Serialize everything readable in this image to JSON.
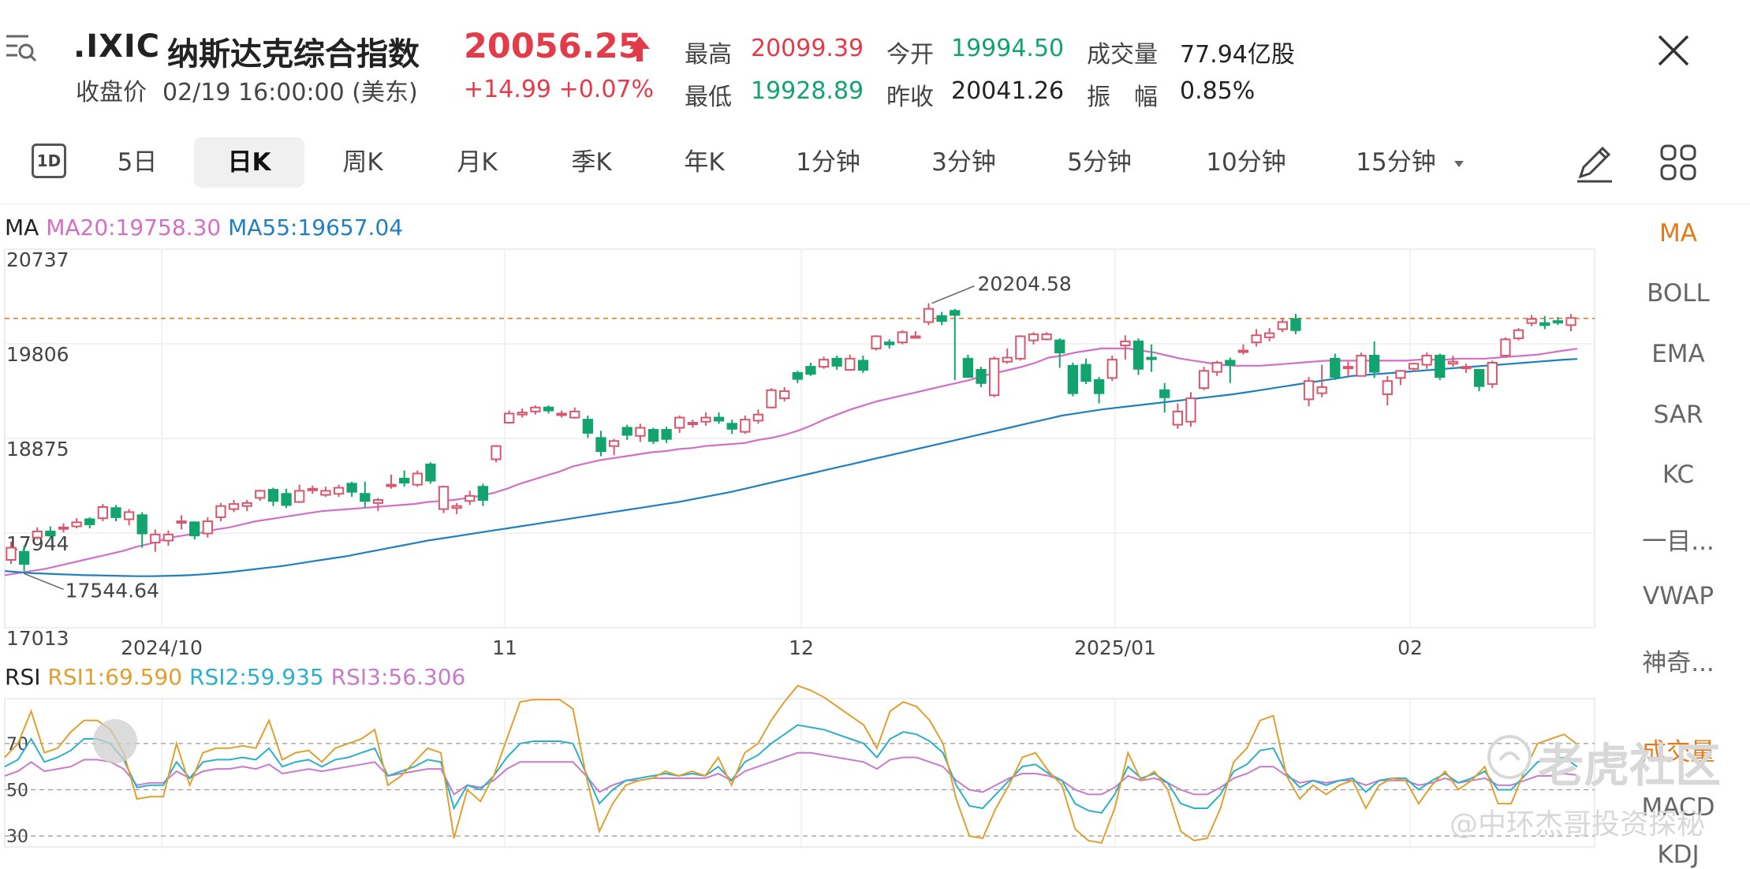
{
  "header": {
    "symbol": ".IXIC",
    "name": "纳斯达克综合指数",
    "price": "20056.25",
    "close_label": "收盘价",
    "close_time": "02/19 16:00:00 (美东)",
    "change": "+14.99  +0.07%",
    "stats": [
      {
        "label": "最高",
        "value": "20099.39",
        "color": "red"
      },
      {
        "label": "今开",
        "value": "19994.50",
        "color": "green"
      },
      {
        "label": "成交量",
        "value": "77.94亿股",
        "color": "dark"
      },
      {
        "label": "最低",
        "value": "19928.89",
        "color": "green"
      },
      {
        "label": "昨收",
        "value": "20041.26",
        "color": "dark"
      },
      {
        "label": "振　幅",
        "value": "0.85%",
        "color": "dark"
      }
    ]
  },
  "tabs": {
    "items": [
      "5日",
      "日K",
      "周K",
      "月K",
      "季K",
      "年K",
      "1分钟",
      "3分钟",
      "5分钟",
      "10分钟",
      "15分钟"
    ],
    "icon_1d": "1D",
    "active": "日K"
  },
  "side": {
    "items": [
      "MA",
      "BOLL",
      "EMA",
      "SAR",
      "KC",
      "一目...",
      "VWAP",
      "神奇...",
      "成交量",
      "MACD",
      "KDJ"
    ],
    "active": "MA"
  },
  "legend": {
    "ma_label": "MA",
    "ma20": "MA20:19758.30",
    "ma55": "MA55:19657.04",
    "rsi_label": "RSI",
    "rsi1": "RSI1:69.590",
    "rsi2": "RSI2:59.935",
    "rsi3": "RSI3:56.306"
  },
  "watermark": {
    "brand": "老虎社区",
    "author": "@中环杰哥投资探秘"
  },
  "colors": {
    "up": "#d9576e",
    "down": "#13a36e",
    "ma20": "#d36fc4",
    "ma55": "#1f7fbf",
    "rsi1": "#e0a030",
    "rsi2": "#2ab0c8",
    "rsi3": "#c97acb",
    "ref": "#e07a1a"
  },
  "chart_data": {
    "type": "candlestick",
    "y_ticks": [
      "20737",
      "19806",
      "18875",
      "17944",
      "17013"
    ],
    "y_range": [
      17013,
      20737
    ],
    "x_ticks": [
      "2024/10",
      "11",
      "12",
      "2025/01",
      "02"
    ],
    "high_label": "20204.58",
    "low_label": "17544.64",
    "ref_value": 20056.25,
    "rsi_ticks": [
      "70",
      "50",
      "30"
    ],
    "candles": [
      [
        17680,
        17800,
        17640,
        17860
      ],
      [
        17760,
        17640,
        17570,
        17820
      ],
      [
        17900,
        17960,
        17880,
        18000
      ],
      [
        17960,
        17920,
        17880,
        18010
      ],
      [
        17990,
        18000,
        17950,
        18040
      ],
      [
        18010,
        18050,
        17990,
        18090
      ],
      [
        18080,
        18030,
        17990,
        18100
      ],
      [
        18090,
        18200,
        18060,
        18230
      ],
      [
        18190,
        18100,
        18060,
        18220
      ],
      [
        18080,
        18150,
        18020,
        18180
      ],
      [
        18120,
        17940,
        17800,
        18150
      ],
      [
        17850,
        17930,
        17760,
        17980
      ],
      [
        17870,
        17930,
        17820,
        17970
      ],
      [
        18060,
        18060,
        17980,
        18120
      ],
      [
        18050,
        17920,
        17880,
        18060
      ],
      [
        17940,
        18060,
        17900,
        18100
      ],
      [
        18100,
        18210,
        18060,
        18240
      ],
      [
        18180,
        18230,
        18150,
        18270
      ],
      [
        18210,
        18240,
        18160,
        18270
      ],
      [
        18290,
        18360,
        18260,
        18370
      ],
      [
        18370,
        18260,
        18210,
        18390
      ],
      [
        18330,
        18220,
        18190,
        18380
      ],
      [
        18250,
        18360,
        18240,
        18420
      ],
      [
        18380,
        18380,
        18330,
        18410
      ],
      [
        18320,
        18360,
        18300,
        18400
      ],
      [
        18330,
        18390,
        18300,
        18420
      ],
      [
        18430,
        18350,
        18300,
        18450
      ],
      [
        18330,
        18260,
        18200,
        18450
      ],
      [
        18240,
        18270,
        18160,
        18290
      ],
      [
        18420,
        18420,
        18380,
        18520
      ],
      [
        18480,
        18440,
        18400,
        18560
      ],
      [
        18420,
        18530,
        18400,
        18560
      ],
      [
        18620,
        18460,
        18430,
        18640
      ],
      [
        18180,
        18400,
        18140,
        18410
      ],
      [
        18190,
        18210,
        18130,
        18240
      ],
      [
        18260,
        18310,
        18220,
        18360
      ],
      [
        18400,
        18270,
        18210,
        18430
      ],
      [
        18670,
        18800,
        18640,
        18810
      ],
      [
        19030,
        19120,
        19020,
        19150
      ],
      [
        19110,
        19130,
        19080,
        19170
      ],
      [
        19140,
        19180,
        19110,
        19200
      ],
      [
        19180,
        19150,
        19120,
        19200
      ],
      [
        19110,
        19120,
        19080,
        19150
      ],
      [
        19080,
        19140,
        19070,
        19180
      ],
      [
        19060,
        18930,
        18880,
        19100
      ],
      [
        18880,
        18750,
        18700,
        18950
      ],
      [
        18800,
        18850,
        18710,
        18870
      ],
      [
        18980,
        18910,
        18860,
        19010
      ],
      [
        18900,
        18980,
        18840,
        19020
      ],
      [
        18960,
        18850,
        18820,
        18980
      ],
      [
        18960,
        18870,
        18830,
        18990
      ],
      [
        18980,
        19080,
        18930,
        19100
      ],
      [
        19020,
        19030,
        18980,
        19060
      ],
      [
        19040,
        19080,
        19000,
        19130
      ],
      [
        19080,
        19050,
        19020,
        19130
      ],
      [
        19020,
        18970,
        18920,
        19060
      ],
      [
        18940,
        19060,
        18920,
        19100
      ],
      [
        19050,
        19110,
        19020,
        19160
      ],
      [
        19180,
        19350,
        19170,
        19370
      ],
      [
        19270,
        19340,
        19240,
        19380
      ],
      [
        19520,
        19460,
        19420,
        19540
      ],
      [
        19580,
        19510,
        19490,
        19620
      ],
      [
        19580,
        19650,
        19560,
        19680
      ],
      [
        19660,
        19590,
        19550,
        19690
      ],
      [
        19550,
        19660,
        19540,
        19700
      ],
      [
        19640,
        19550,
        19520,
        19690
      ],
      [
        19760,
        19880,
        19740,
        19890
      ],
      [
        19820,
        19800,
        19760,
        19850
      ],
      [
        19820,
        19920,
        19800,
        19940
      ],
      [
        19880,
        19880,
        19860,
        19930
      ],
      [
        20020,
        20150,
        19990,
        20205
      ],
      [
        20080,
        20030,
        19990,
        20120
      ],
      [
        20130,
        20090,
        19450,
        20150
      ],
      [
        19660,
        19480,
        19470,
        19700
      ],
      [
        19550,
        19420,
        19380,
        19580
      ],
      [
        19300,
        19660,
        19280,
        19680
      ],
      [
        19630,
        19670,
        19610,
        19760
      ],
      [
        19660,
        19880,
        19640,
        19890
      ],
      [
        19840,
        19900,
        19800,
        19920
      ],
      [
        19850,
        19900,
        19840,
        19920
      ],
      [
        19840,
        19720,
        19570,
        19860
      ],
      [
        19590,
        19320,
        19290,
        19620
      ],
      [
        19600,
        19440,
        19410,
        19660
      ],
      [
        19450,
        19320,
        19220,
        19480
      ],
      [
        19470,
        19650,
        19440,
        19690
      ],
      [
        19790,
        19830,
        19650,
        19890
      ],
      [
        19830,
        19560,
        19500,
        19860
      ],
      [
        19670,
        19660,
        19530,
        19800
      ],
      [
        19350,
        19280,
        19130,
        19420
      ],
      [
        19010,
        19140,
        18970,
        19220
      ],
      [
        19040,
        19270,
        18990,
        19330
      ],
      [
        19370,
        19540,
        19350,
        19580
      ],
      [
        19530,
        19620,
        19490,
        19640
      ],
      [
        19640,
        19600,
        19420,
        19670
      ],
      [
        19730,
        19740,
        19700,
        19800
      ],
      [
        19820,
        19890,
        19780,
        19950
      ],
      [
        19870,
        19910,
        19830,
        19960
      ],
      [
        19950,
        20020,
        19920,
        20060
      ],
      [
        20050,
        19940,
        19900,
        20100
      ],
      [
        19260,
        19440,
        19190,
        19480
      ],
      [
        19320,
        19380,
        19280,
        19600
      ],
      [
        19660,
        19480,
        19450,
        19710
      ],
      [
        19570,
        19580,
        19480,
        19630
      ],
      [
        19490,
        19690,
        19490,
        19720
      ],
      [
        19690,
        19530,
        19470,
        19830
      ],
      [
        19310,
        19440,
        19200,
        19490
      ],
      [
        19470,
        19540,
        19400,
        19550
      ],
      [
        19560,
        19610,
        19530,
        19620
      ],
      [
        19600,
        19690,
        19560,
        19720
      ],
      [
        19690,
        19480,
        19450,
        19710
      ],
      [
        19610,
        19630,
        19580,
        19690
      ],
      [
        19580,
        19580,
        19520,
        19610
      ],
      [
        19550,
        19390,
        19340,
        19560
      ],
      [
        19410,
        19620,
        19370,
        19640
      ],
      [
        19690,
        19850,
        19670,
        19870
      ],
      [
        19860,
        19940,
        19840,
        19960
      ],
      [
        20010,
        20050,
        19980,
        20090
      ],
      [
        20010,
        19990,
        19950,
        20080
      ],
      [
        20030,
        20020,
        19990,
        20070
      ],
      [
        19990,
        20060,
        19930,
        20100
      ]
    ],
    "ma20": [
      17530,
      17550,
      17570,
      17590,
      17620,
      17650,
      17680,
      17710,
      17740,
      17770,
      17810,
      17840,
      17880,
      17910,
      17930,
      17950,
      17980,
      18000,
      18030,
      18060,
      18080,
      18100,
      18120,
      18140,
      18160,
      18170,
      18180,
      18190,
      18200,
      18210,
      18220,
      18230,
      18250,
      18260,
      18270,
      18290,
      18310,
      18340,
      18380,
      18430,
      18470,
      18510,
      18550,
      18600,
      18630,
      18660,
      18680,
      18700,
      18720,
      18740,
      18750,
      18770,
      18780,
      18800,
      18810,
      18820,
      18830,
      18860,
      18880,
      18910,
      18950,
      19000,
      19060,
      19110,
      19160,
      19200,
      19240,
      19270,
      19300,
      19330,
      19360,
      19390,
      19420,
      19450,
      19490,
      19520,
      19550,
      19580,
      19620,
      19670,
      19690,
      19720,
      19740,
      19760,
      19760,
      19760,
      19740,
      19720,
      19690,
      19660,
      19640,
      19620,
      19600,
      19590,
      19590,
      19590,
      19600,
      19610,
      19620,
      19630,
      19640,
      19640,
      19640,
      19640,
      19640,
      19640,
      19640,
      19650,
      19650,
      19650,
      19660,
      19660,
      19660,
      19670,
      19680,
      19690,
      19700,
      19720,
      19740,
      19758
    ],
    "ma55": [
      17570,
      17560,
      17550,
      17545,
      17540,
      17535,
      17530,
      17528,
      17525,
      17522,
      17520,
      17520,
      17522,
      17525,
      17530,
      17538,
      17548,
      17560,
      17575,
      17590,
      17605,
      17620,
      17640,
      17660,
      17680,
      17700,
      17720,
      17745,
      17770,
      17795,
      17820,
      17845,
      17870,
      17890,
      17910,
      17930,
      17950,
      17970,
      17990,
      18010,
      18030,
      18050,
      18070,
      18090,
      18110,
      18130,
      18150,
      18170,
      18190,
      18210,
      18230,
      18250,
      18275,
      18300,
      18325,
      18350,
      18380,
      18410,
      18440,
      18470,
      18500,
      18530,
      18560,
      18590,
      18620,
      18650,
      18680,
      18710,
      18740,
      18770,
      18800,
      18830,
      18860,
      18890,
      18920,
      18950,
      18980,
      19010,
      19040,
      19070,
      19100,
      19120,
      19140,
      19160,
      19175,
      19190,
      19205,
      19220,
      19235,
      19250,
      19265,
      19280,
      19295,
      19310,
      19330,
      19350,
      19370,
      19390,
      19410,
      19430,
      19450,
      19470,
      19490,
      19500,
      19510,
      19520,
      19530,
      19540,
      19550,
      19560,
      19570,
      19580,
      19590,
      19600,
      19610,
      19620,
      19630,
      19640,
      19650,
      19657
    ],
    "rsi1": [
      64,
      70,
      84,
      66,
      68,
      75,
      80,
      80,
      76,
      66,
      46,
      47,
      47,
      70,
      52,
      66,
      68,
      68,
      69,
      68,
      80,
      63,
      66,
      67,
      62,
      68,
      70,
      72,
      76,
      52,
      56,
      62,
      68,
      66,
      29,
      50,
      45,
      56,
      72,
      88,
      89,
      89,
      89,
      85,
      56,
      32,
      44,
      52,
      54,
      55,
      58,
      56,
      58,
      56,
      64,
      52,
      66,
      70,
      80,
      88,
      95,
      93,
      90,
      86,
      82,
      78,
      68,
      84,
      88,
      86,
      80,
      70,
      46,
      30,
      29,
      42,
      52,
      64,
      66,
      58,
      52,
      33,
      28,
      27,
      42,
      66,
      54,
      58,
      50,
      32,
      28,
      29,
      42,
      62,
      68,
      80,
      82,
      56,
      46,
      52,
      48,
      52,
      54,
      42,
      52,
      55,
      54,
      44,
      52,
      58,
      50,
      54,
      60,
      44,
      44,
      58,
      70,
      72,
      74,
      69.59
    ],
    "rsi2": [
      60,
      63,
      72,
      62,
      64,
      67,
      72,
      72,
      70,
      63,
      51,
      52,
      52,
      62,
      55,
      62,
      63,
      63,
      64,
      63,
      68,
      60,
      62,
      63,
      60,
      63,
      64,
      66,
      68,
      56,
      58,
      60,
      63,
      62,
      42,
      52,
      50,
      56,
      64,
      70,
      71,
      71,
      71,
      70,
      57,
      44,
      50,
      54,
      55,
      56,
      57,
      56,
      57,
      56,
      60,
      54,
      62,
      65,
      70,
      74,
      78,
      77,
      76,
      74,
      72,
      70,
      64,
      72,
      75,
      74,
      71,
      66,
      52,
      43,
      42,
      48,
      54,
      60,
      61,
      57,
      54,
      44,
      41,
      40,
      48,
      60,
      55,
      57,
      53,
      44,
      42,
      42,
      48,
      58,
      61,
      67,
      68,
      57,
      51,
      54,
      52,
      54,
      55,
      49,
      54,
      55,
      55,
      50,
      54,
      57,
      53,
      55,
      58,
      50,
      50,
      56,
      62,
      63,
      64,
      59.94
    ],
    "rsi3": [
      56,
      58,
      62,
      58,
      59,
      60,
      63,
      63,
      62,
      59,
      52,
      53,
      53,
      58,
      55,
      58,
      59,
      59,
      60,
      59,
      61,
      57,
      58,
      59,
      58,
      59,
      60,
      61,
      62,
      56,
      57,
      58,
      59,
      59,
      48,
      52,
      51,
      54,
      59,
      62,
      62,
      62,
      62,
      62,
      56,
      49,
      52,
      54,
      54,
      55,
      55,
      55,
      55,
      55,
      57,
      54,
      58,
      60,
      62,
      64,
      66,
      66,
      65,
      64,
      63,
      62,
      59,
      63,
      64,
      64,
      62,
      60,
      54,
      50,
      49,
      52,
      55,
      57,
      57,
      56,
      54,
      50,
      48,
      48,
      51,
      56,
      54,
      55,
      53,
      50,
      48,
      48,
      51,
      55,
      57,
      60,
      60,
      56,
      53,
      54,
      53,
      54,
      54,
      52,
      54,
      54,
      54,
      52,
      53,
      55,
      53,
      54,
      55,
      52,
      52,
      54,
      56,
      56,
      57,
      56.31
    ]
  }
}
